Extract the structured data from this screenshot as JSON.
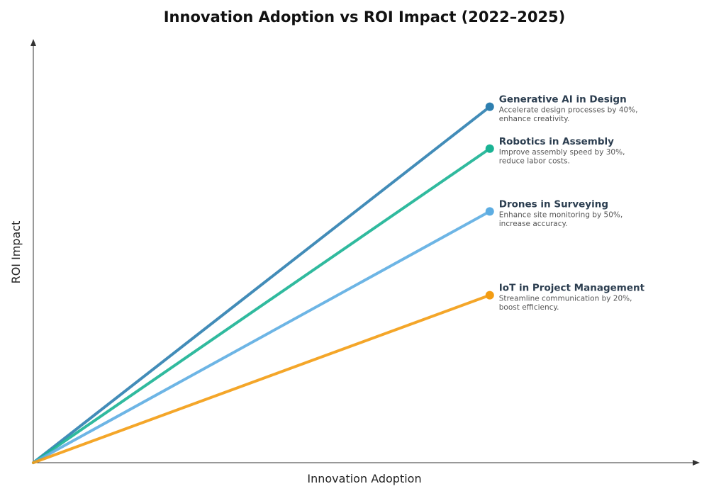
{
  "chart_data": {
    "type": "line",
    "title": "Innovation Adoption vs ROI Impact (2022–2025)",
    "xlabel": "Innovation Adoption",
    "ylabel": "ROI Impact",
    "grid": false,
    "legend": "annotations at line ends",
    "xlim": [
      0,
      100
    ],
    "ylim": [
      0,
      100
    ],
    "series": [
      {
        "name": "Generative AI in Design",
        "desc_lines": [
          "Accelerate design processes by 40%,",
          "enhance creativity."
        ],
        "color": "#2e7fb0",
        "x": [
          0,
          69
        ],
        "y": [
          0,
          85
        ]
      },
      {
        "name": "Robotics in Assembly",
        "desc_lines": [
          "Improve assembly speed by 30%,",
          "reduce labor costs."
        ],
        "color": "#1ab394",
        "x": [
          0,
          69
        ],
        "y": [
          0,
          75
        ]
      },
      {
        "name": "Drones in Surveying",
        "desc_lines": [
          "Enhance site monitoring by 50%,",
          "increase accuracy."
        ],
        "color": "#5dade2",
        "x": [
          0,
          69
        ],
        "y": [
          0,
          60
        ]
      },
      {
        "name": "IoT in Project Management",
        "desc_lines": [
          "Streamline communication by 20%,",
          "boost efficiency."
        ],
        "color": "#f39c12",
        "x": [
          0,
          69
        ],
        "y": [
          0,
          40
        ]
      }
    ]
  }
}
